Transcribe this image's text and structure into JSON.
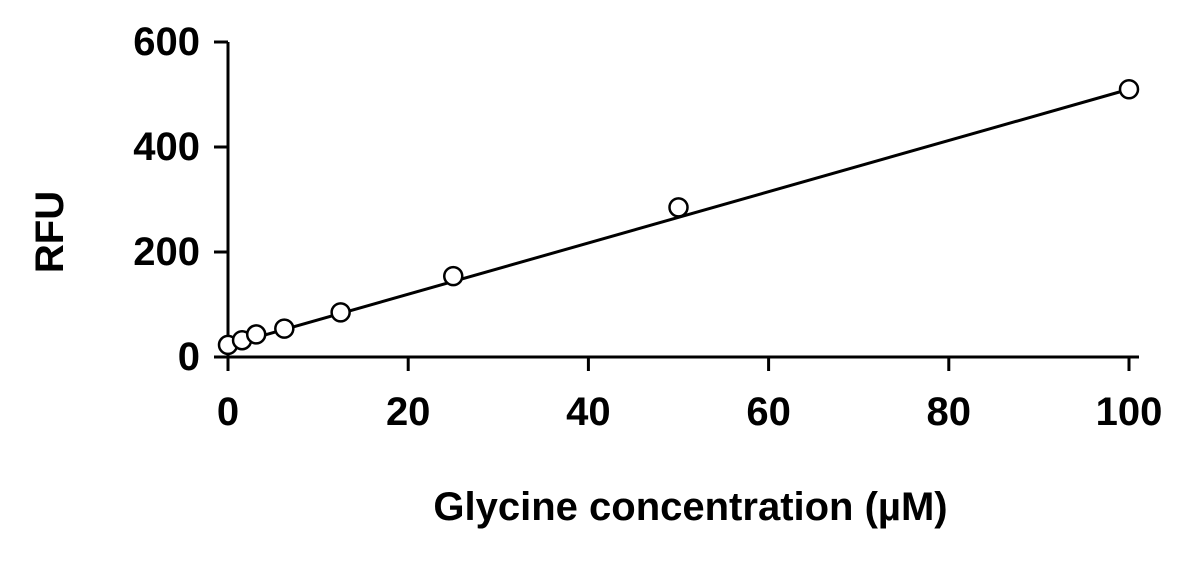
{
  "chart_data": {
    "type": "scatter",
    "title": "",
    "xlabel": "Glycine concentration (µM)",
    "ylabel": "RFU",
    "xlim": [
      0,
      100
    ],
    "ylim": [
      0,
      600
    ],
    "x_ticks": [
      "0",
      "20",
      "40",
      "60",
      "80",
      "100"
    ],
    "y_ticks": [
      "0",
      "200",
      "400",
      "600"
    ],
    "grid": false,
    "legend": "none",
    "series": [
      {
        "marker": "open-circle",
        "x": [
          0,
          1.56,
          3.13,
          6.25,
          12.5,
          25,
          50,
          100
        ],
        "y": [
          23,
          32,
          43,
          54,
          85,
          154,
          285,
          510
        ]
      }
    ],
    "fit_line": {
      "type": "linear",
      "x": [
        0,
        100
      ],
      "y": [
        22,
        510
      ]
    },
    "colors": {
      "axis": "#000000",
      "marker_stroke": "#000000",
      "marker_fill": "#ffffff",
      "line": "#000000"
    }
  }
}
